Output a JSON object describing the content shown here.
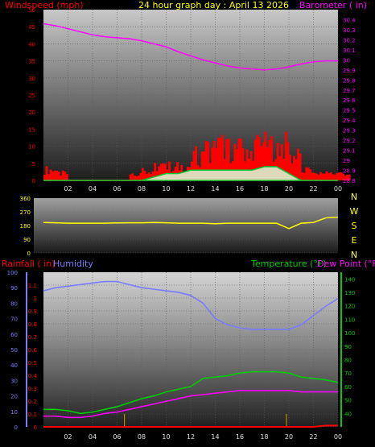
{
  "header": {
    "title": "24 hour graph day : April 13 2026",
    "left_label": "Windspeed (mph)",
    "right_label": "Barometer ( in)"
  },
  "colors": {
    "wind": "#ff0000",
    "gust": "#00cc33",
    "barometer": "#ff00ff",
    "direction": "#ffff00",
    "rainfall": "#ff0000",
    "humidity": "#7b7bff",
    "temperature": "#00cc00",
    "dewpoint": "#ff00ff",
    "title": "#ffff00"
  },
  "chart_data": [
    {
      "type": "line",
      "title": "24 hour graph day : April 13 2026",
      "ylabel": "Windspeed (mph)",
      "ylim": [
        0,
        50
      ],
      "y_ticks": [
        "0",
        "5",
        "10",
        "15",
        "20",
        "25",
        "30",
        "35",
        "40",
        "45",
        "50"
      ],
      "y2label": "Barometer ( in)",
      "y2lim": [
        28.8,
        30.5
      ],
      "y2_ticks": [
        "28.8",
        "28.9",
        "29",
        "29.1",
        "29.2",
        "29.3",
        "29.4",
        "29.5",
        "29.6",
        "29.7",
        "29.8",
        "29.9",
        "30",
        "30.1",
        "30.2",
        "30.3",
        "30.4"
      ],
      "x_ticks": [
        "02",
        "04",
        "06",
        "08",
        "10",
        "12",
        "14",
        "16",
        "18",
        "20",
        "22",
        "00"
      ],
      "series": [
        {
          "name": "Windspeed (mph)",
          "type": "bar",
          "x": [
            0,
            1,
            2,
            3,
            4,
            5,
            6,
            7,
            8,
            9,
            10,
            11,
            12,
            13,
            14,
            15,
            16,
            17,
            18,
            19,
            20,
            21,
            22,
            23,
            24
          ],
          "values": [
            3,
            2,
            0,
            0,
            0,
            0,
            0,
            2,
            3,
            4,
            4,
            4,
            7,
            9,
            10,
            9,
            9,
            10,
            10,
            10,
            7,
            3,
            2,
            2,
            2
          ]
        },
        {
          "name": "Gust",
          "type": "area",
          "x": [
            0,
            1,
            2,
            3,
            4,
            5,
            6,
            7,
            8,
            9,
            10,
            11,
            12,
            13,
            14,
            15,
            16,
            17,
            18,
            19,
            20,
            21,
            22,
            23,
            24
          ],
          "values": [
            0,
            0,
            0,
            0,
            0,
            0,
            0,
            0,
            0,
            1,
            2,
            2,
            3,
            3,
            3,
            3,
            3,
            3,
            4,
            4,
            2,
            0,
            0,
            0,
            0
          ]
        },
        {
          "name": "Barometer ( in)",
          "type": "line",
          "x": [
            0,
            1,
            2,
            3,
            4,
            5,
            6,
            7,
            8,
            9,
            10,
            11,
            12,
            13,
            14,
            15,
            16,
            17,
            18,
            19,
            20,
            21,
            22,
            23,
            24
          ],
          "values": [
            30.36,
            30.34,
            30.31,
            30.28,
            30.25,
            30.23,
            30.22,
            30.21,
            30.19,
            30.16,
            30.13,
            30.08,
            30.04,
            30.0,
            29.97,
            29.94,
            29.92,
            29.91,
            29.9,
            29.91,
            29.93,
            29.96,
            29.98,
            29.99,
            29.99
          ]
        }
      ]
    },
    {
      "type": "line",
      "ylim": [
        0,
        360
      ],
      "y_ticks": [
        "0",
        "90",
        "180",
        "270",
        "360"
      ],
      "direction_labels": [
        "N",
        "W",
        "S",
        "E",
        "N"
      ],
      "series": [
        {
          "name": "Wind direction",
          "x": [
            0,
            1,
            2,
            3,
            4,
            5,
            6,
            7,
            8,
            9,
            10,
            11,
            12,
            13,
            14,
            15,
            16,
            17,
            18,
            19,
            20,
            21,
            22,
            23,
            24
          ],
          "values": [
            200,
            198,
            195,
            195,
            195,
            195,
            197,
            198,
            198,
            200,
            198,
            195,
            195,
            195,
            192,
            195,
            195,
            195,
            195,
            195,
            160,
            195,
            200,
            230,
            235
          ]
        }
      ]
    },
    {
      "type": "line",
      "legend": [
        "Rainfall ( in)",
        "Humidity",
        "Temperature (°F)",
        "Dew Point (°F)"
      ],
      "ylabel_rain": "Rainfall ( in)",
      "rain_ticks": [
        "0",
        "0.1",
        "0.2",
        "0.3",
        "0.4",
        "0.5",
        "0.6",
        "0.7",
        "0.8",
        "0.9",
        "1",
        "1.1"
      ],
      "rain_ylim": [
        0,
        1.2
      ],
      "humidity_ticks": [
        "0",
        "10",
        "20",
        "30",
        "40",
        "50",
        "60",
        "70",
        "80",
        "90",
        "100"
      ],
      "humidity_ylim": [
        0,
        100
      ],
      "temp_ticks": [
        "40",
        "50",
        "60",
        "70",
        "80",
        "90",
        "100",
        "110",
        "120",
        "130",
        "140"
      ],
      "temp_ylim": [
        30,
        145
      ],
      "x_ticks": [
        "02",
        "04",
        "06",
        "08",
        "10",
        "12",
        "14",
        "16",
        "18",
        "20",
        "22",
        "00"
      ],
      "series": [
        {
          "name": "Humidity",
          "x": [
            0,
            1,
            2,
            3,
            4,
            5,
            6,
            7,
            8,
            9,
            10,
            11,
            12,
            13,
            14,
            15,
            16,
            17,
            18,
            19,
            20,
            21,
            22,
            23,
            24
          ],
          "values": [
            88,
            90,
            91,
            92,
            93,
            94,
            94,
            92,
            90,
            89,
            88,
            87,
            85,
            80,
            70,
            66,
            64,
            63,
            63,
            63,
            63,
            66,
            72,
            78,
            83
          ]
        },
        {
          "name": "Temperature (°F)",
          "x": [
            0,
            1,
            2,
            3,
            4,
            5,
            6,
            7,
            8,
            9,
            10,
            11,
            12,
            13,
            14,
            15,
            16,
            17,
            18,
            19,
            20,
            21,
            22,
            23,
            24
          ],
          "values": [
            43,
            43,
            42,
            40,
            41,
            43,
            45,
            48,
            51,
            53,
            56,
            58,
            60,
            66,
            67,
            68,
            70,
            71,
            71,
            71,
            70,
            67,
            66,
            65,
            63
          ]
        },
        {
          "name": "Dew Point (°F)",
          "x": [
            0,
            1,
            2,
            3,
            4,
            5,
            6,
            7,
            8,
            9,
            10,
            11,
            12,
            13,
            14,
            15,
            16,
            17,
            18,
            19,
            20,
            21,
            22,
            23,
            24
          ],
          "values": [
            38,
            38,
            37,
            37,
            38,
            40,
            41,
            43,
            45,
            47,
            49,
            51,
            53,
            54,
            55,
            56,
            57,
            57,
            57,
            57,
            57,
            56,
            56,
            56,
            56
          ]
        },
        {
          "name": "Rainfall ( in)",
          "x": [
            0,
            1,
            2,
            3,
            4,
            5,
            6,
            7,
            8,
            9,
            10,
            11,
            12,
            13,
            14,
            15,
            16,
            17,
            18,
            19,
            20,
            21,
            22,
            23,
            24
          ],
          "values": [
            0,
            0,
            0,
            0,
            0,
            0,
            0,
            0,
            0,
            0,
            0,
            0,
            0,
            0,
            0,
            0,
            0,
            0,
            0,
            0,
            0,
            0,
            0,
            0.01,
            0.01
          ]
        }
      ]
    }
  ]
}
